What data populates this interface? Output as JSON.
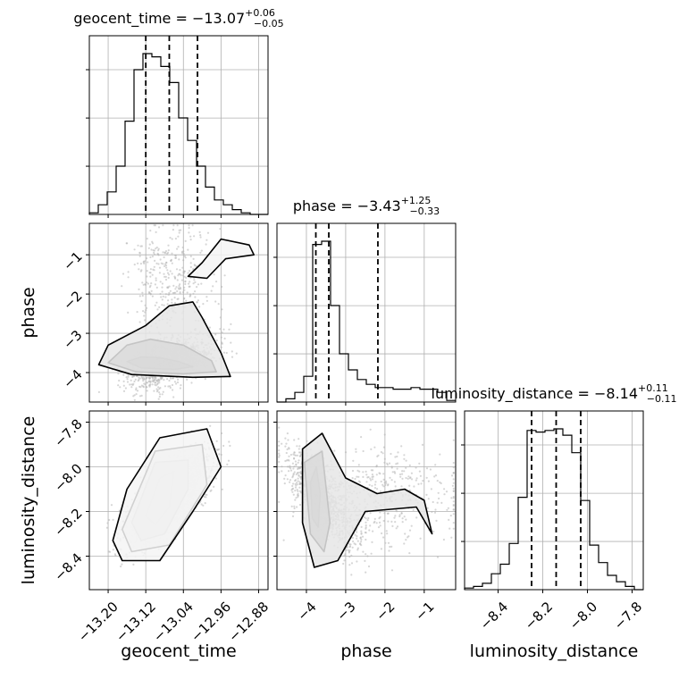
{
  "chart_data": {
    "type": "corner",
    "parameters": [
      "geocent_time",
      "phase",
      "luminosity_distance"
    ],
    "titles": [
      {
        "param": "geocent_time",
        "label": "geocent_time = ",
        "median": "−13.07",
        "plus": "+0.06",
        "minus": "−0.05"
      },
      {
        "param": "phase",
        "label": "phase = ",
        "median": "−3.43",
        "plus": "+1.25",
        "minus": "−0.33"
      },
      {
        "param": "luminosity_distance",
        "label": "luminosity_distance = ",
        "median": "−8.14",
        "plus": "+0.11",
        "minus": "−0.11"
      }
    ],
    "ranges": {
      "geocent_time": [
        -13.24,
        -12.86
      ],
      "phase": [
        -4.75,
        -0.2
      ],
      "luminosity_distance": [
        -8.55,
        -7.75
      ]
    },
    "ticks": {
      "geocent_time": [
        {
          "v": -13.2,
          "label": "−13.20"
        },
        {
          "v": -13.12,
          "label": "−13.12"
        },
        {
          "v": -13.04,
          "label": "−13.04"
        },
        {
          "v": -12.96,
          "label": "−12.96"
        },
        {
          "v": -12.88,
          "label": "−12.88"
        }
      ],
      "phase": [
        {
          "v": -4,
          "label": "−4"
        },
        {
          "v": -3,
          "label": "−3"
        },
        {
          "v": -2,
          "label": "−2"
        },
        {
          "v": -1,
          "label": "−1"
        }
      ],
      "luminosity_distance": [
        {
          "v": -8.4,
          "label": "−8.4"
        },
        {
          "v": -8.2,
          "label": "−8.2"
        },
        {
          "v": -8.0,
          "label": "−8.0"
        },
        {
          "v": -7.8,
          "label": "−7.8"
        }
      ]
    },
    "quantiles": {
      "geocent_time": [
        -13.12,
        -13.07,
        -13.01
      ],
      "phase": [
        -3.76,
        -3.43,
        -2.18
      ],
      "luminosity_distance": [
        -8.25,
        -8.14,
        -8.03
      ]
    },
    "histograms": {
      "geocent_time": {
        "start": -13.24,
        "width": 0.019,
        "counts": [
          1,
          6,
          14,
          30,
          58,
          90,
          100,
          98,
          92,
          82,
          60,
          46,
          30,
          17,
          9,
          6,
          3,
          1,
          0,
          0
        ]
      },
      "phase": {
        "start": -4.75,
        "width": 0.2275,
        "counts": [
          0,
          2,
          6,
          16,
          98,
          100,
          60,
          30,
          20,
          14,
          11,
          9,
          9,
          8,
          8,
          9,
          8,
          8,
          6,
          1
        ]
      },
      "luminosity_distance": {
        "start": -8.55,
        "width": 0.04,
        "counts": [
          1,
          2,
          4,
          10,
          16,
          29,
          58,
          100,
          99,
          100,
          101,
          97,
          86,
          56,
          28,
          17,
          9,
          5,
          2,
          0
        ]
      }
    },
    "grid": true,
    "contour_line_color": "#000000",
    "density_color": "#000000",
    "scatter_color": "#b4b4b4"
  }
}
